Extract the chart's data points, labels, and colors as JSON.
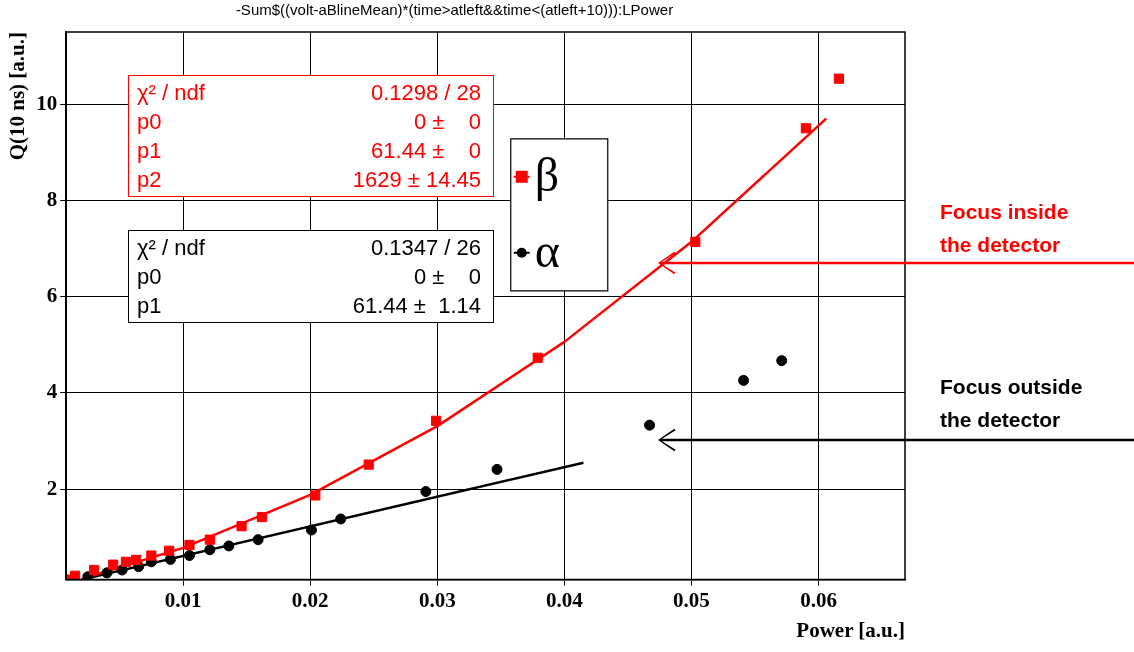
{
  "chart_data": {
    "type": "scatter",
    "title": "-Sum$((volt-aBlineMean)*(time>atleft&&time<(atleft+10))):LPower",
    "xlabel": "Power [a.u.]",
    "ylabel": "Q(10 ns) [a.u.]",
    "xlim": [
      0.0008,
      0.0668
    ],
    "ylim": [
      0.12,
      11.5
    ],
    "xticks": [
      0.01,
      0.02,
      0.03,
      0.04,
      0.05,
      0.06
    ],
    "yticks": [
      2,
      4,
      6,
      8,
      10
    ],
    "grid": true,
    "legend": "top",
    "annotations": [
      "χ² / ndf",
      "0.1298 / 28",
      "p0",
      "0 ±    0",
      "p1",
      "61.44 ±    0",
      "p2",
      "1629 ± 14.45",
      "χ² / ndf",
      "0.1347 / 26",
      "p0",
      "0 ±    0",
      "p1",
      "61.44 ±  1.14",
      "Focus inside the detector",
      "Focus outside the detector"
    ],
    "series": [
      {
        "name": "β",
        "color": "#ff0000",
        "marker": "square",
        "x": [
          0.00095,
          0.0015,
          0.003,
          0.0045,
          0.0055,
          0.0063,
          0.0075,
          0.0089,
          0.0105,
          0.0121,
          0.0146,
          0.0162,
          0.0204,
          0.0246,
          0.0299,
          0.0379,
          0.0503,
          0.059,
          0.0616
        ],
        "values": [
          0.12,
          0.2,
          0.32,
          0.43,
          0.49,
          0.53,
          0.62,
          0.72,
          0.84,
          0.95,
          1.23,
          1.42,
          1.87,
          2.51,
          3.42,
          4.73,
          7.14,
          9.5,
          10.53
        ]
      },
      {
        "name": "α",
        "color": "#000000",
        "marker": "circle",
        "x": [
          0.0025,
          0.004,
          0.0052,
          0.0065,
          0.0075,
          0.009,
          0.0105,
          0.0121,
          0.0136,
          0.0159,
          0.0201,
          0.0224,
          0.0291,
          0.0347,
          0.0467,
          0.0541,
          0.0571
        ],
        "values": [
          0.18,
          0.26,
          0.32,
          0.39,
          0.49,
          0.54,
          0.62,
          0.74,
          0.82,
          0.95,
          1.15,
          1.38,
          1.95,
          2.41,
          3.33,
          4.26,
          4.67
        ]
      },
      {
        "type": "line",
        "color": "#ff0000",
        "marker": "none",
        "x": [
          0.002,
          0.01,
          0.02,
          0.03,
          0.04,
          0.05,
          0.0606
        ],
        "values": [
          0.13,
          0.78,
          1.88,
          3.31,
          5.06,
          7.14,
          9.7
        ]
      },
      {
        "type": "line",
        "color": "#000000",
        "marker": "none",
        "x": [
          0.002,
          0.0415
        ],
        "values": [
          0.12,
          2.55
        ]
      }
    ]
  }
}
